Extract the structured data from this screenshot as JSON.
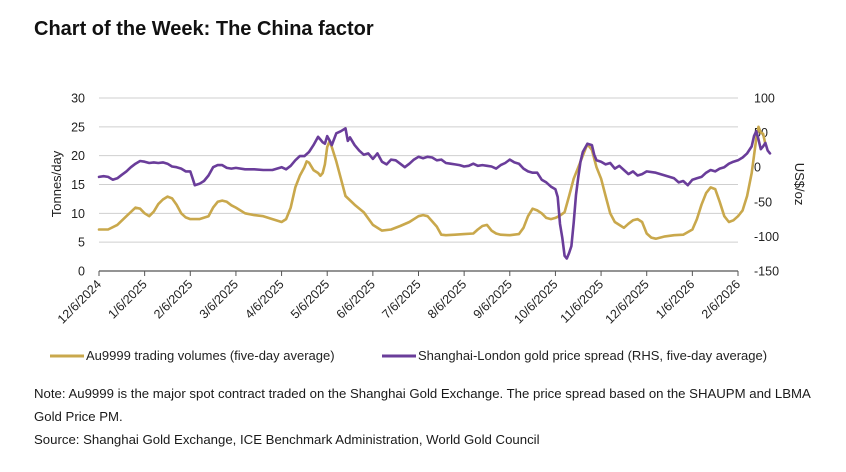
{
  "title": "Chart of the Week: The China factor",
  "notes": {
    "note": "Note: Au9999 is the major spot contract traded on the Shanghai Gold Exchange. The price spread based on the SHAUPM and LBMA Gold Price PM.",
    "source": "Source: Shanghai Gold Exchange, ICE Benchmark Administration, World Gold Council"
  },
  "chart_data": {
    "type": "line",
    "ylabel": "Tonnes/day",
    "y2label": "US$/oz",
    "ylim": [
      0,
      30
    ],
    "y2lim": [
      -150,
      100
    ],
    "yticks": [
      "0",
      "5",
      "10",
      "15",
      "20",
      "25",
      "30"
    ],
    "y2ticks": [
      "-150",
      "-100",
      "-50",
      "0",
      "50",
      "100"
    ],
    "x_range": [
      0,
      14
    ],
    "x_tick_positions": [
      0,
      1,
      2,
      3,
      4,
      5,
      6,
      7,
      8,
      9,
      10,
      11,
      12,
      13,
      14
    ],
    "x_tick_labels": [
      "12/6/2024",
      "1/6/2025",
      "2/6/2025",
      "3/6/2025",
      "4/6/2025",
      "5/6/2025",
      "6/6/2025",
      "7/6/2025",
      "8/6/2025",
      "9/6/2025",
      "10/6/2025",
      "11/6/2025",
      "12/6/2025",
      "1/6/2026",
      "2/6/2026"
    ],
    "series": [
      {
        "name": "Au9999 trading volumes (five-day average)",
        "axis": "left",
        "color": "#C9A84C",
        "points": [
          [
            0,
            7.2
          ],
          [
            0.2,
            7.2
          ],
          [
            0.4,
            8
          ],
          [
            0.6,
            9.5
          ],
          [
            0.8,
            11
          ],
          [
            0.9,
            10.8
          ],
          [
            1,
            10
          ],
          [
            1.1,
            9.5
          ],
          [
            1.2,
            10.3
          ],
          [
            1.3,
            11.6
          ],
          [
            1.4,
            12.4
          ],
          [
            1.5,
            12.9
          ],
          [
            1.6,
            12.6
          ],
          [
            1.7,
            11.5
          ],
          [
            1.8,
            10
          ],
          [
            1.9,
            9.3
          ],
          [
            2,
            9
          ],
          [
            2.2,
            9
          ],
          [
            2.4,
            9.5
          ],
          [
            2.5,
            11
          ],
          [
            2.6,
            12
          ],
          [
            2.7,
            12.2
          ],
          [
            2.8,
            12
          ],
          [
            2.9,
            11.4
          ],
          [
            3,
            11
          ],
          [
            3.2,
            10
          ],
          [
            3.4,
            9.7
          ],
          [
            3.6,
            9.5
          ],
          [
            3.8,
            9
          ],
          [
            4,
            8.5
          ],
          [
            4.1,
            9
          ],
          [
            4.2,
            11
          ],
          [
            4.3,
            14.5
          ],
          [
            4.4,
            16.5
          ],
          [
            4.5,
            18
          ],
          [
            4.55,
            19
          ],
          [
            4.6,
            18.8
          ],
          [
            4.7,
            17.5
          ],
          [
            4.8,
            17
          ],
          [
            4.85,
            16.5
          ],
          [
            4.9,
            17
          ],
          [
            4.95,
            18.5
          ],
          [
            5,
            21.5
          ],
          [
            5.05,
            22.5
          ],
          [
            5.1,
            21.5
          ],
          [
            5.2,
            19
          ],
          [
            5.3,
            16
          ],
          [
            5.4,
            13
          ],
          [
            5.6,
            11.5
          ],
          [
            5.8,
            10.2
          ],
          [
            6,
            8
          ],
          [
            6.2,
            7
          ],
          [
            6.4,
            7.2
          ],
          [
            6.6,
            7.8
          ],
          [
            6.8,
            8.5
          ],
          [
            7,
            9.5
          ],
          [
            7.1,
            9.7
          ],
          [
            7.2,
            9.5
          ],
          [
            7.3,
            8.6
          ],
          [
            7.4,
            7.7
          ],
          [
            7.5,
            6.3
          ],
          [
            7.6,
            6.2
          ],
          [
            7.8,
            6.3
          ],
          [
            8,
            6.4
          ],
          [
            8.2,
            6.5
          ],
          [
            8.3,
            7.2
          ],
          [
            8.4,
            7.8
          ],
          [
            8.5,
            8
          ],
          [
            8.6,
            7
          ],
          [
            8.7,
            6.5
          ],
          [
            8.8,
            6.3
          ],
          [
            9,
            6.2
          ],
          [
            9.2,
            6.4
          ],
          [
            9.3,
            7.5
          ],
          [
            9.4,
            9.5
          ],
          [
            9.5,
            10.8
          ],
          [
            9.6,
            10.5
          ],
          [
            9.7,
            10
          ],
          [
            9.8,
            9.2
          ],
          [
            9.9,
            9
          ],
          [
            10,
            9.2
          ],
          [
            10.1,
            9.6
          ],
          [
            10.2,
            10.2
          ],
          [
            10.3,
            13
          ],
          [
            10.4,
            16
          ],
          [
            10.5,
            18
          ],
          [
            10.6,
            20
          ],
          [
            10.7,
            22
          ],
          [
            10.8,
            21
          ],
          [
            10.9,
            18
          ],
          [
            11,
            16
          ],
          [
            11.1,
            13
          ],
          [
            11.2,
            10
          ],
          [
            11.3,
            8.5
          ],
          [
            11.4,
            8
          ],
          [
            11.5,
            7.5
          ],
          [
            11.6,
            8.2
          ],
          [
            11.7,
            8.8
          ],
          [
            11.8,
            9
          ],
          [
            11.9,
            8.5
          ],
          [
            12,
            6.5
          ],
          [
            12.1,
            5.8
          ],
          [
            12.2,
            5.6
          ],
          [
            12.4,
            6
          ],
          [
            12.6,
            6.2
          ],
          [
            12.8,
            6.3
          ],
          [
            13,
            7.2
          ],
          [
            13.1,
            9
          ],
          [
            13.2,
            11.5
          ],
          [
            13.3,
            13.5
          ],
          [
            13.4,
            14.5
          ],
          [
            13.5,
            14.2
          ],
          [
            13.6,
            12
          ],
          [
            13.7,
            9.5
          ],
          [
            13.8,
            8.5
          ],
          [
            13.9,
            8.8
          ],
          [
            14,
            9.5
          ],
          [
            14.1,
            10.5
          ],
          [
            14.2,
            13
          ],
          [
            14.3,
            17
          ],
          [
            14.35,
            20
          ],
          [
            14.4,
            23
          ],
          [
            14.45,
            25
          ],
          [
            14.5,
            24
          ],
          [
            14.55,
            23.8
          ],
          [
            14.6,
            22
          ]
        ]
      },
      {
        "name": "Shanghai-London gold price spread (RHS, five-day average)",
        "axis": "right",
        "color": "#6A3D9A",
        "points": [
          [
            0,
            -14
          ],
          [
            0.1,
            -13
          ],
          [
            0.2,
            -14
          ],
          [
            0.3,
            -18
          ],
          [
            0.4,
            -16
          ],
          [
            0.5,
            -11
          ],
          [
            0.6,
            -6
          ],
          [
            0.7,
            0
          ],
          [
            0.8,
            5
          ],
          [
            0.9,
            9
          ],
          [
            1,
            8
          ],
          [
            1.1,
            6
          ],
          [
            1.2,
            7
          ],
          [
            1.3,
            6
          ],
          [
            1.4,
            7
          ],
          [
            1.5,
            5
          ],
          [
            1.6,
            1
          ],
          [
            1.7,
            0
          ],
          [
            1.8,
            -2
          ],
          [
            1.9,
            -6
          ],
          [
            2,
            -6
          ],
          [
            2.05,
            -16
          ],
          [
            2.1,
            -26
          ],
          [
            2.2,
            -24
          ],
          [
            2.3,
            -20
          ],
          [
            2.4,
            -12
          ],
          [
            2.5,
            0
          ],
          [
            2.6,
            3
          ],
          [
            2.7,
            3
          ],
          [
            2.8,
            -1
          ],
          [
            2.9,
            -2
          ],
          [
            3,
            -1
          ],
          [
            3.2,
            -3
          ],
          [
            3.4,
            -3
          ],
          [
            3.6,
            -4
          ],
          [
            3.8,
            -4
          ],
          [
            4,
            0
          ],
          [
            4.1,
            -3
          ],
          [
            4.2,
            2
          ],
          [
            4.3,
            10
          ],
          [
            4.4,
            16
          ],
          [
            4.5,
            16
          ],
          [
            4.6,
            22
          ],
          [
            4.7,
            32
          ],
          [
            4.8,
            44
          ],
          [
            4.85,
            40
          ],
          [
            4.9,
            36
          ],
          [
            4.95,
            34
          ],
          [
            5,
            45
          ],
          [
            5.05,
            39
          ],
          [
            5.1,
            32
          ],
          [
            5.2,
            49
          ],
          [
            5.3,
            52
          ],
          [
            5.4,
            56
          ],
          [
            5.45,
            38
          ],
          [
            5.5,
            43
          ],
          [
            5.6,
            32
          ],
          [
            5.7,
            24
          ],
          [
            5.8,
            18
          ],
          [
            5.9,
            20
          ],
          [
            6,
            12
          ],
          [
            6.1,
            20
          ],
          [
            6.2,
            8
          ],
          [
            6.3,
            4
          ],
          [
            6.4,
            11
          ],
          [
            6.5,
            10
          ],
          [
            6.6,
            5
          ],
          [
            6.7,
            0
          ],
          [
            6.8,
            5
          ],
          [
            6.9,
            11
          ],
          [
            7,
            15
          ],
          [
            7.1,
            13
          ],
          [
            7.2,
            15
          ],
          [
            7.3,
            14
          ],
          [
            7.4,
            10
          ],
          [
            7.5,
            11
          ],
          [
            7.6,
            6
          ],
          [
            7.7,
            5
          ],
          [
            7.8,
            4
          ],
          [
            7.9,
            3
          ],
          [
            8,
            1
          ],
          [
            8.1,
            2
          ],
          [
            8.2,
            5
          ],
          [
            8.3,
            2
          ],
          [
            8.4,
            3
          ],
          [
            8.5,
            2
          ],
          [
            8.6,
            1
          ],
          [
            8.7,
            -2
          ],
          [
            8.8,
            3
          ],
          [
            8.9,
            6
          ],
          [
            9,
            11
          ],
          [
            9.1,
            7
          ],
          [
            9.2,
            5
          ],
          [
            9.3,
            -2
          ],
          [
            9.4,
            -6
          ],
          [
            9.5,
            -8
          ],
          [
            9.6,
            -8
          ],
          [
            9.7,
            -18
          ],
          [
            9.8,
            -22
          ],
          [
            9.9,
            -28
          ],
          [
            10,
            -32
          ],
          [
            10.05,
            -43
          ],
          [
            10.1,
            -82
          ],
          [
            10.15,
            -102
          ],
          [
            10.2,
            -128
          ],
          [
            10.25,
            -132
          ],
          [
            10.3,
            -124
          ],
          [
            10.35,
            -114
          ],
          [
            10.4,
            -80
          ],
          [
            10.45,
            -40
          ],
          [
            10.5,
            -14
          ],
          [
            10.55,
            8
          ],
          [
            10.6,
            22
          ],
          [
            10.7,
            34
          ],
          [
            10.8,
            32
          ],
          [
            10.85,
            18
          ],
          [
            10.9,
            10
          ],
          [
            11,
            8
          ],
          [
            11.1,
            4
          ],
          [
            11.2,
            6
          ],
          [
            11.3,
            -2
          ],
          [
            11.4,
            2
          ],
          [
            11.5,
            -4
          ],
          [
            11.6,
            -10
          ],
          [
            11.7,
            -6
          ],
          [
            11.8,
            -12
          ],
          [
            11.9,
            -10
          ],
          [
            12,
            -6
          ],
          [
            12.2,
            -8
          ],
          [
            12.4,
            -12
          ],
          [
            12.6,
            -16
          ],
          [
            12.7,
            -22
          ],
          [
            12.8,
            -20
          ],
          [
            12.9,
            -26
          ],
          [
            13,
            -18
          ],
          [
            13.1,
            -16
          ],
          [
            13.2,
            -14
          ],
          [
            13.3,
            -8
          ],
          [
            13.4,
            -4
          ],
          [
            13.5,
            -6
          ],
          [
            13.6,
            -2
          ],
          [
            13.7,
            0
          ],
          [
            13.8,
            5
          ],
          [
            13.9,
            8
          ],
          [
            14,
            10
          ],
          [
            14.1,
            14
          ],
          [
            14.2,
            20
          ],
          [
            14.3,
            30
          ],
          [
            14.35,
            45
          ],
          [
            14.4,
            52
          ],
          [
            14.45,
            40
          ],
          [
            14.5,
            26
          ],
          [
            14.55,
            30
          ],
          [
            14.6,
            35
          ],
          [
            14.65,
            24
          ],
          [
            14.7,
            20
          ]
        ]
      }
    ],
    "legend_position": "bottom"
  }
}
